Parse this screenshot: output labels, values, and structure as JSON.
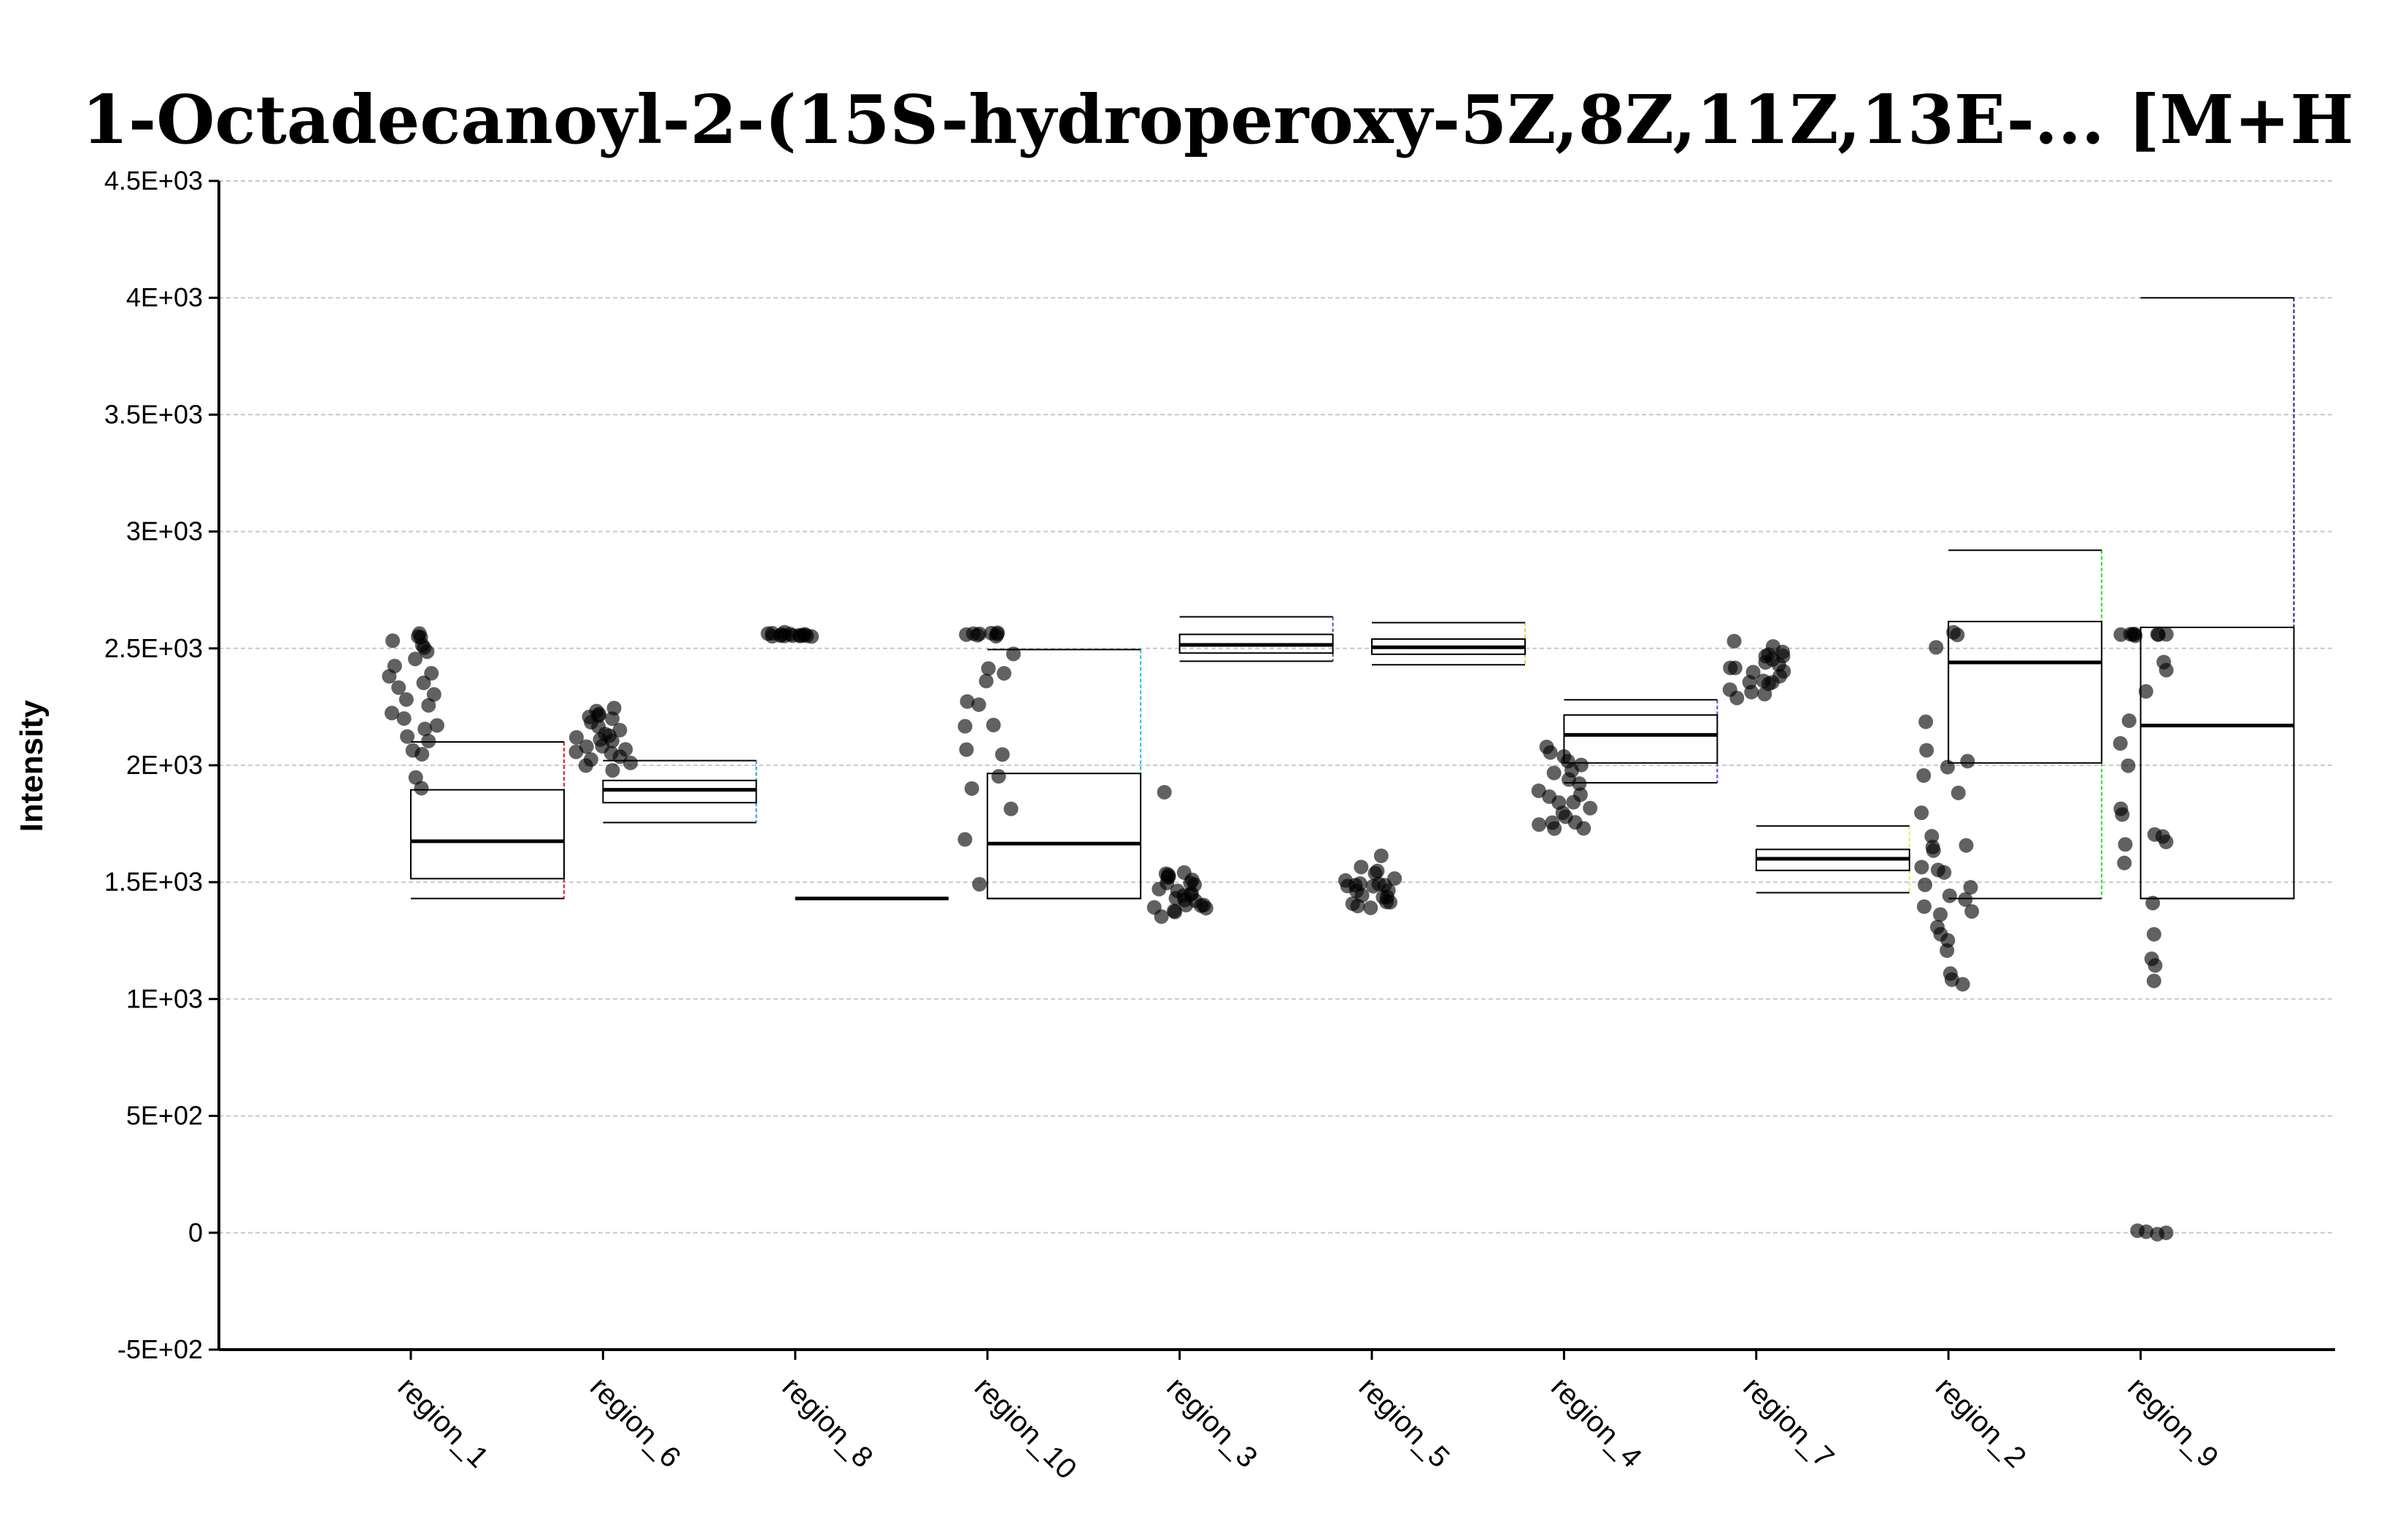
{
  "chart_data": {
    "type": "box",
    "title": "1-Octadecanoyl-2-(15S-hydroperoxy-5Z,8Z,11Z,13E-... [M+H",
    "xlabel": "",
    "ylabel": "Intensity",
    "ylim": [
      -500,
      4500
    ],
    "yticks": [
      -500,
      0,
      500,
      1000,
      1500,
      2000,
      2500,
      3000,
      3500,
      4000,
      4500
    ],
    "ytick_labels": [
      "-5E+02",
      "0",
      "5E+02",
      "1E+03",
      "1.5E+03",
      "2E+03",
      "2.5E+03",
      "3E+03",
      "3.5E+03",
      "4E+03",
      "4.5E+03"
    ],
    "grid": "horizontal dashed",
    "categories": [
      "region_1",
      "region_6",
      "region_8",
      "region_10",
      "region_3",
      "region_5",
      "region_4",
      "region_7",
      "region_2",
      "region_9"
    ],
    "boxes": [
      {
        "category": "region_1",
        "whisker_low": 1430,
        "q1": 1515,
        "median": 1675,
        "q3": 1895,
        "whisker_high": 2100,
        "whisker_color": "#e8211c"
      },
      {
        "category": "region_6",
        "whisker_low": 1755,
        "q1": 1840,
        "median": 1895,
        "q3": 1935,
        "whisker_high": 2020,
        "whisker_color": "#1f9fe0"
      },
      {
        "category": "region_8",
        "whisker_low": 1430,
        "q1": 1430,
        "median": 1430,
        "q3": 1430,
        "whisker_high": 1430,
        "whisker_color": "#000000"
      },
      {
        "category": "region_10",
        "whisker_low": 1430,
        "q1": 1430,
        "median": 1665,
        "q3": 1965,
        "whisker_high": 2495,
        "whisker_color": "#19c3e6"
      },
      {
        "category": "region_3",
        "whisker_low": 2445,
        "q1": 2480,
        "median": 2515,
        "q3": 2560,
        "whisker_high": 2635,
        "whisker_color": "#7a3db8"
      },
      {
        "category": "region_5",
        "whisker_low": 2430,
        "q1": 2475,
        "median": 2505,
        "q3": 2540,
        "whisker_high": 2610,
        "whisker_color": "#f2d23a"
      },
      {
        "category": "region_4",
        "whisker_low": 1925,
        "q1": 2010,
        "median": 2130,
        "q3": 2215,
        "whisker_high": 2280,
        "whisker_color": "#7a3db8"
      },
      {
        "category": "region_7",
        "whisker_low": 1455,
        "q1": 1550,
        "median": 1600,
        "q3": 1640,
        "whisker_high": 1740,
        "whisker_color": "#e9ea52"
      },
      {
        "category": "region_2",
        "whisker_low": 1430,
        "q1": 2010,
        "median": 2440,
        "q3": 2615,
        "whisker_high": 2920,
        "whisker_color": "#1ee02a"
      },
      {
        "category": "region_9",
        "whisker_low": 1430,
        "q1": 1430,
        "median": 2170,
        "q3": 2590,
        "whisker_high": 4000,
        "whisker_color": "#1a1aa0"
      }
    ],
    "points": [
      {
        "category": "region_1",
        "values": [
          2560,
          2560,
          2550,
          2540,
          2520,
          2500,
          2480,
          2450,
          2430,
          2400,
          2380,
          2350,
          2330,
          2310,
          2280,
          2250,
          2220,
          2200,
          2170,
          2150,
          2130,
          2100,
          2070,
          2040,
          1940,
          1900
        ]
      },
      {
        "category": "region_6",
        "values": [
          2240,
          2230,
          2220,
          2210,
          2200,
          2190,
          2180,
          2160,
          2150,
          2140,
          2130,
          2120,
          2110,
          2100,
          2090,
          2080,
          2070,
          2060,
          2050,
          2040,
          2030,
          2010,
          2000,
          1985
        ]
      },
      {
        "category": "region_8",
        "values": [
          2560,
          2560,
          2560,
          2560,
          2560,
          2560,
          2560,
          2560,
          2560,
          2560,
          2560,
          2560,
          2560,
          2560,
          2560
        ]
      },
      {
        "category": "region_10",
        "values": [
          2560,
          2560,
          2560,
          2560,
          2560,
          2560,
          2560,
          2560,
          2480,
          2420,
          2390,
          2360,
          2280,
          2250,
          2170,
          2160,
          2060,
          2050,
          1950,
          1900,
          1810,
          1690,
          1500
        ]
      },
      {
        "category": "region_3",
        "values": [
          1880,
          1550,
          1540,
          1530,
          1520,
          1510,
          1500,
          1490,
          1480,
          1470,
          1460,
          1450,
          1440,
          1430,
          1420,
          1410,
          1400,
          1395,
          1390,
          1385,
          1380,
          1370,
          1360,
          1540,
          1460,
          1420
        ]
      },
      {
        "category": "region_5",
        "values": [
          1620,
          1570,
          1550,
          1530,
          1520,
          1510,
          1500,
          1495,
          1490,
          1480,
          1470,
          1460,
          1450,
          1440,
          1430,
          1420,
          1410,
          1400,
          1395,
          1390,
          1480,
          1500
        ]
      },
      {
        "category": "region_4",
        "values": [
          2070,
          2060,
          2040,
          2010,
          2000,
          1980,
          1960,
          1940,
          1920,
          1900,
          1880,
          1860,
          1850,
          1840,
          1820,
          1800,
          1780,
          1760,
          1750,
          1740,
          1730,
          1720
        ]
      },
      {
        "category": "region_7",
        "values": [
          2540,
          2510,
          2490,
          2480,
          2470,
          2460,
          2450,
          2440,
          2430,
          2420,
          2410,
          2400,
          2390,
          2380,
          2370,
          2360,
          2350,
          2340,
          2330,
          2320,
          2300,
          2280
        ]
      },
      {
        "category": "region_2",
        "values": [
          2570,
          2550,
          2500,
          2180,
          2060,
          2010,
          2000,
          1960,
          1880,
          1790,
          1700,
          1660,
          1650,
          1640,
          1560,
          1550,
          1540,
          1480,
          1470,
          1450,
          1420,
          1390,
          1380,
          1370,
          1300,
          1280,
          1250,
          1210,
          1100,
          1090,
          1070
        ]
      },
      {
        "category": "region_9",
        "values": [
          2560,
          2560,
          2560,
          2560,
          2560,
          2560,
          2560,
          2560,
          2450,
          2400,
          2320,
          2190,
          2100,
          1990,
          1820,
          1780,
          1700,
          1690,
          1670,
          1660,
          1580,
          1410,
          1280,
          1180,
          1140,
          1070,
          0,
          0,
          0,
          0
        ]
      }
    ]
  }
}
